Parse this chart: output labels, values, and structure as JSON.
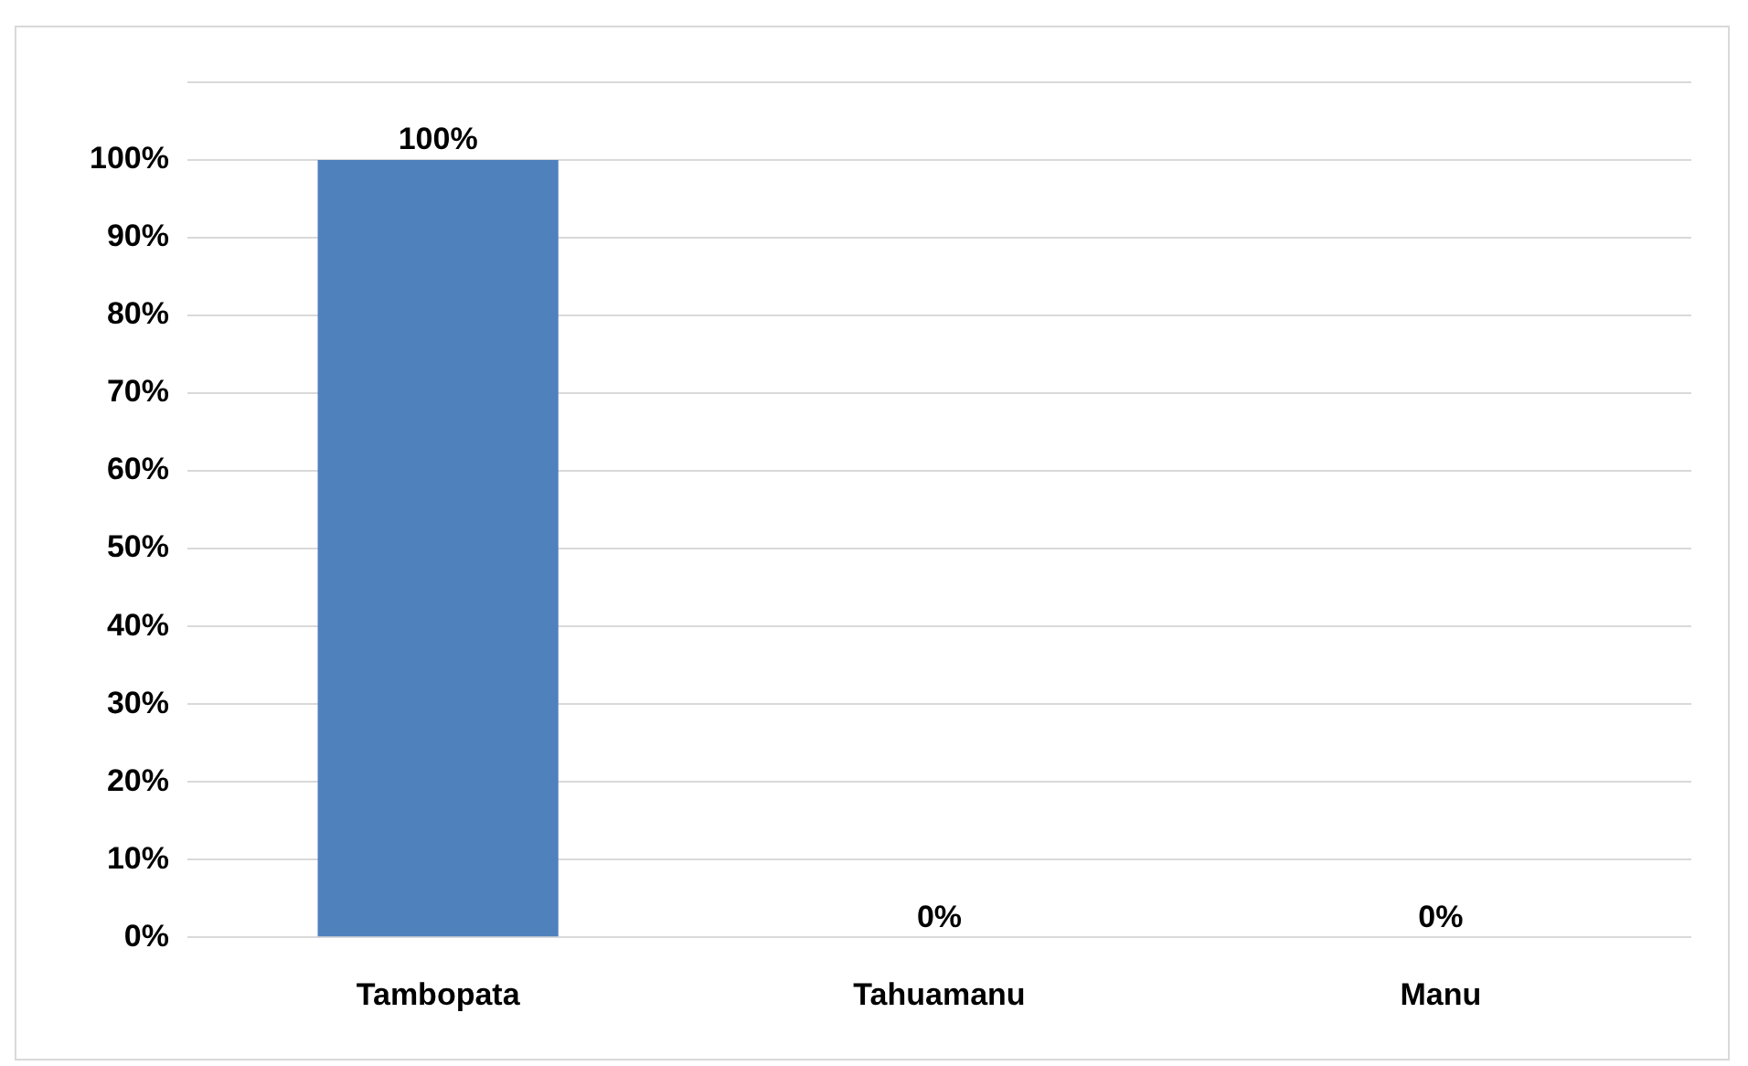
{
  "chart_data": {
    "type": "bar",
    "categories": [
      "Tambopata",
      "Tahuamanu",
      "Manu"
    ],
    "values": [
      100,
      0,
      0
    ],
    "color": "#4f81bd",
    "value_labels": [
      "100%",
      "0%",
      "0%"
    ],
    "ylim": [
      0,
      110
    ],
    "yticks": [
      {
        "value": 0,
        "label": "0%"
      },
      {
        "value": 10,
        "label": "10%"
      },
      {
        "value": 20,
        "label": "20%"
      },
      {
        "value": 30,
        "label": "30%"
      },
      {
        "value": 40,
        "label": "40%"
      },
      {
        "value": 50,
        "label": "50%"
      },
      {
        "value": 60,
        "label": "60%"
      },
      {
        "value": 70,
        "label": "70%"
      },
      {
        "value": 80,
        "label": "80%"
      },
      {
        "value": 90,
        "label": "90%"
      },
      {
        "value": 100,
        "label": "100%"
      },
      {
        "value": 110,
        "label": null
      }
    ],
    "grid": "y",
    "legend": false
  }
}
